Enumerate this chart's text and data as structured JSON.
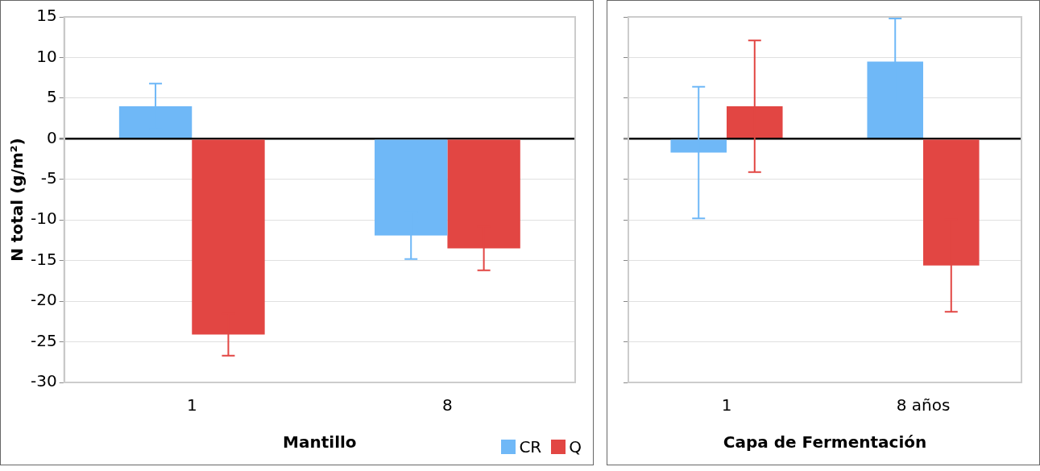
{
  "chart_data": [
    {
      "type": "bar",
      "xlabel": "Mantillo",
      "ylabel": "N total (g/m²)",
      "categories": [
        "1",
        "8"
      ],
      "series": [
        {
          "name": "CR",
          "color": "#6fb8f7",
          "values": [
            4,
            -11.9
          ],
          "errors": [
            2.8,
            2.9
          ]
        },
        {
          "name": "Q",
          "color": "#e24643",
          "values": [
            -24.1,
            -13.5
          ],
          "errors": [
            2.6,
            2.7
          ]
        }
      ],
      "ylim": [
        -30,
        15
      ],
      "yticks": [
        -30,
        -25,
        -20,
        -15,
        -10,
        -5,
        0,
        5,
        10,
        15
      ],
      "grid": "y",
      "legend": "bottom right"
    },
    {
      "type": "bar",
      "xlabel": "Capa de Fermentación",
      "categories": [
        "1",
        "8 años"
      ],
      "series": [
        {
          "color": "#6fb8f7",
          "values": [
            -1.7,
            9.5
          ],
          "errors": [
            8.1,
            5.3
          ]
        },
        {
          "color": "#e24643",
          "values": [
            4,
            -15.6
          ],
          "errors": [
            8.1,
            5.7
          ]
        }
      ],
      "ylim": [
        -30,
        15
      ],
      "yticks": [
        -30,
        -25,
        -20,
        -15,
        -10,
        -5,
        0,
        5,
        10,
        15
      ],
      "grid": "y",
      "tick_labels": "x"
    }
  ]
}
